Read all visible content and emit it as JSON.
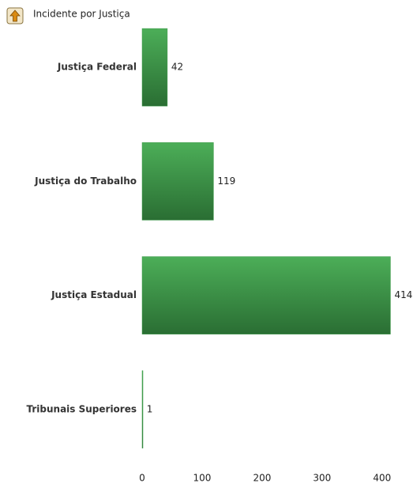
{
  "chart_data": {
    "type": "barh",
    "title": "Incidente por Justiça",
    "categories": [
      "Justiça Federal",
      "Justiça do Trabalho",
      "Justiça Estadual",
      "Tribunais Superiores"
    ],
    "values": [
      42,
      119,
      414,
      1
    ],
    "color": "#3c9a48",
    "xlim": [
      0,
      420
    ],
    "xticks": [
      0,
      100,
      200,
      300,
      400
    ],
    "grid": false
  }
}
